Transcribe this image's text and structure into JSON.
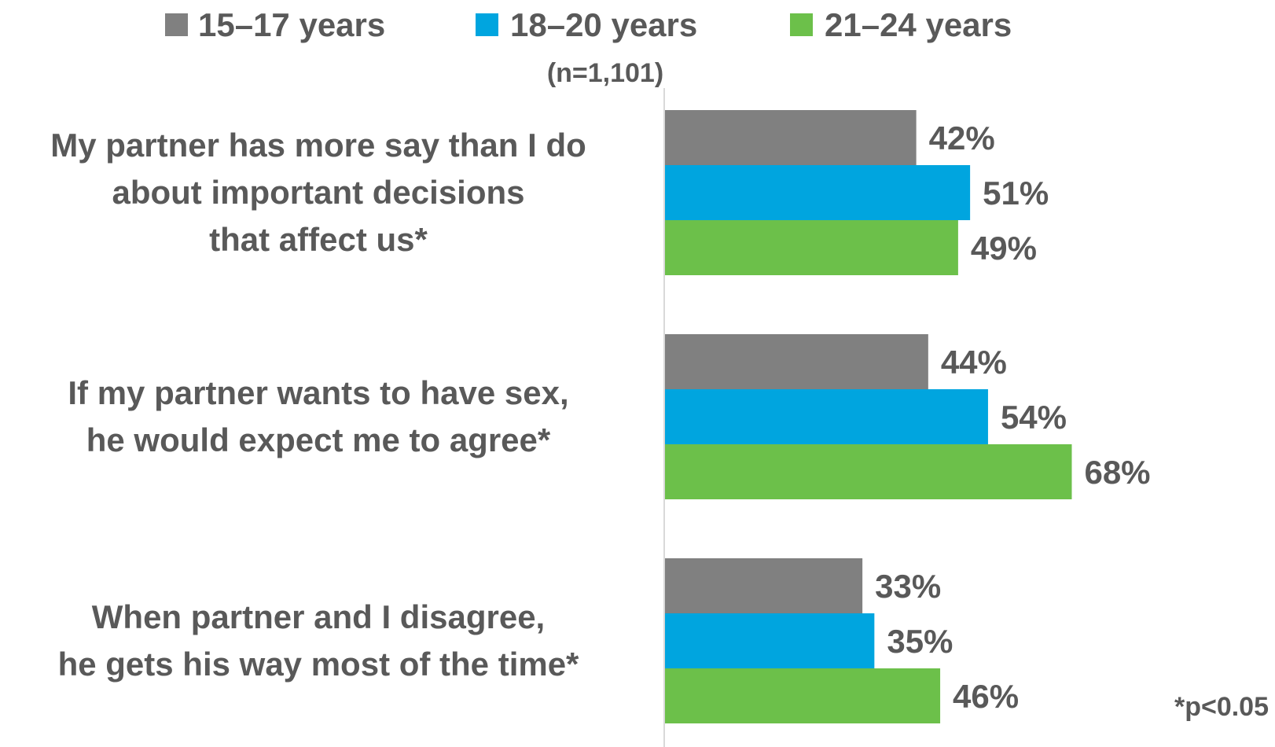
{
  "chart_data": {
    "type": "bar",
    "orientation": "horizontal",
    "sample_note": "(n=1,101)",
    "footnote": "*p<0.05",
    "categories": [
      [
        "My partner has more say than I do",
        "about important decisions",
        "that affect us*"
      ],
      [
        "If my partner wants to have sex,",
        "he would expect me to agree*"
      ],
      [
        "When partner and I disagree,",
        "he gets his way most of the time*"
      ]
    ],
    "series": [
      {
        "name": "15–17 years",
        "color": "#808080",
        "values": [
          42,
          44,
          33
        ],
        "labels": [
          "42%",
          "44%",
          "33%"
        ]
      },
      {
        "name": "18–20 years",
        "color": "#00A5DF",
        "values": [
          51,
          54,
          35
        ],
        "labels": [
          "51%",
          "54%",
          "35%"
        ]
      },
      {
        "name": "21–24 years",
        "color": "#6CC04A",
        "values": [
          49,
          68,
          46
        ],
        "labels": [
          "49%",
          "68%",
          "46%"
        ]
      }
    ],
    "xlim": [
      0,
      100
    ],
    "legend_position": "top",
    "grid": false
  }
}
